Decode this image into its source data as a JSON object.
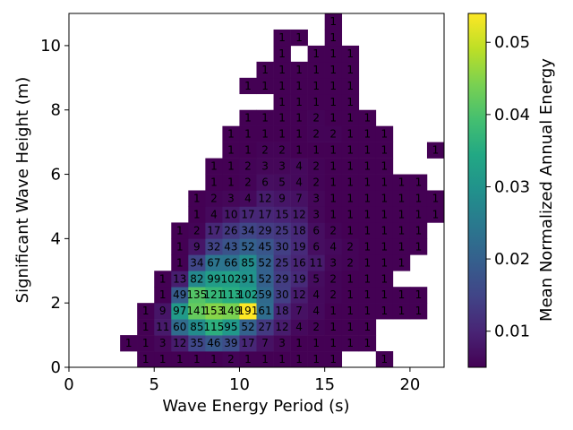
{
  "chart_data": {
    "type": "heatmap",
    "title": "",
    "xlabel": "Wave Energy Period (s)",
    "ylabel": "Significant Wave Height (m)",
    "colorbar_label": "Mean Normalized Annual Energy",
    "colormap": "viridis",
    "xlim": [
      0,
      22
    ],
    "ylim": [
      0,
      11
    ],
    "xticks": [
      0,
      5,
      10,
      15,
      20
    ],
    "yticks": [
      0,
      2,
      4,
      6,
      8,
      10
    ],
    "colorbar_range": [
      0.005,
      0.054
    ],
    "colorbar_ticks": [
      "0.01",
      "0.02",
      "0.03",
      "0.04",
      "0.05"
    ],
    "colorbar_tick_values": [
      0.01,
      0.02,
      0.03,
      0.04,
      0.05
    ],
    "bin_x_edges": [
      3,
      4,
      5,
      6,
      7,
      8,
      9,
      10,
      11,
      12,
      13,
      14,
      15,
      16,
      17,
      18,
      19,
      20,
      21,
      22
    ],
    "bin_y_edges": [
      0,
      0.5,
      1.0,
      1.5,
      2.0,
      2.5,
      3.0,
      3.5,
      4.0,
      4.5,
      5.0,
      5.5,
      6.0,
      6.5,
      7.0,
      7.5,
      8.0,
      8.5,
      9.0,
      9.5,
      10.0,
      10.5,
      11.0
    ],
    "rows": [
      {
        "y": 0.25,
        "cells": [
          [
            4,
            1
          ],
          [
            5,
            1
          ],
          [
            6,
            1
          ],
          [
            7,
            1
          ],
          [
            8,
            1
          ],
          [
            9,
            2
          ],
          [
            10,
            1
          ],
          [
            11,
            1
          ],
          [
            12,
            1
          ],
          [
            13,
            1
          ],
          [
            14,
            1
          ],
          [
            15,
            1
          ],
          [
            18,
            1
          ]
        ]
      },
      {
        "y": 0.75,
        "cells": [
          [
            3,
            1
          ],
          [
            4,
            1
          ],
          [
            5,
            3
          ],
          [
            6,
            12
          ],
          [
            7,
            35
          ],
          [
            8,
            46
          ],
          [
            9,
            39
          ],
          [
            10,
            17
          ],
          [
            11,
            7
          ],
          [
            12,
            3
          ],
          [
            13,
            1
          ],
          [
            14,
            1
          ],
          [
            15,
            1
          ],
          [
            16,
            1
          ],
          [
            17,
            1
          ]
        ]
      },
      {
        "y": 1.25,
        "cells": [
          [
            4,
            1
          ],
          [
            5,
            11
          ],
          [
            6,
            60
          ],
          [
            7,
            85
          ],
          [
            8,
            115
          ],
          [
            9,
            95
          ],
          [
            10,
            52
          ],
          [
            11,
            27
          ],
          [
            12,
            12
          ],
          [
            13,
            4
          ],
          [
            14,
            2
          ],
          [
            15,
            1
          ],
          [
            16,
            1
          ],
          [
            17,
            1
          ]
        ]
      },
      {
        "y": 1.75,
        "cells": [
          [
            4,
            1
          ],
          [
            5,
            9
          ],
          [
            6,
            97
          ],
          [
            7,
            141
          ],
          [
            8,
            153
          ],
          [
            9,
            149
          ],
          [
            10,
            191
          ],
          [
            11,
            61
          ],
          [
            12,
            18
          ],
          [
            13,
            7
          ],
          [
            14,
            4
          ],
          [
            15,
            1
          ],
          [
            16,
            1
          ],
          [
            17,
            1
          ],
          [
            18,
            1
          ],
          [
            19,
            1
          ],
          [
            20,
            1
          ]
        ]
      },
      {
        "y": 2.25,
        "cells": [
          [
            5,
            1
          ],
          [
            6,
            49
          ],
          [
            7,
            135
          ],
          [
            8,
            121
          ],
          [
            9,
            113
          ],
          [
            10,
            102
          ],
          [
            11,
            59
          ],
          [
            12,
            30
          ],
          [
            13,
            12
          ],
          [
            14,
            4
          ],
          [
            15,
            2
          ],
          [
            16,
            1
          ],
          [
            17,
            1
          ],
          [
            18,
            1
          ],
          [
            19,
            1
          ],
          [
            20,
            1
          ]
        ]
      },
      {
        "y": 2.75,
        "cells": [
          [
            5,
            1
          ],
          [
            6,
            13
          ],
          [
            7,
            82
          ],
          [
            8,
            99
          ],
          [
            9,
            102
          ],
          [
            10,
            91
          ],
          [
            11,
            52
          ],
          [
            12,
            29
          ],
          [
            13,
            19
          ],
          [
            14,
            5
          ],
          [
            15,
            2
          ],
          [
            16,
            1
          ],
          [
            17,
            1
          ],
          [
            18,
            1
          ]
        ]
      },
      {
        "y": 3.25,
        "cells": [
          [
            6,
            1
          ],
          [
            7,
            34
          ],
          [
            8,
            67
          ],
          [
            9,
            66
          ],
          [
            10,
            85
          ],
          [
            11,
            52
          ],
          [
            12,
            25
          ],
          [
            13,
            16
          ],
          [
            14,
            11
          ],
          [
            15,
            3
          ],
          [
            16,
            2
          ],
          [
            17,
            1
          ],
          [
            18,
            1
          ],
          [
            19,
            1
          ]
        ]
      },
      {
        "y": 3.75,
        "cells": [
          [
            6,
            1
          ],
          [
            7,
            9
          ],
          [
            8,
            32
          ],
          [
            9,
            43
          ],
          [
            10,
            52
          ],
          [
            11,
            45
          ],
          [
            12,
            30
          ],
          [
            13,
            19
          ],
          [
            14,
            6
          ],
          [
            15,
            4
          ],
          [
            16,
            2
          ],
          [
            17,
            1
          ],
          [
            18,
            1
          ],
          [
            19,
            1
          ],
          [
            20,
            1
          ]
        ]
      },
      {
        "y": 4.25,
        "cells": [
          [
            6,
            1
          ],
          [
            7,
            2
          ],
          [
            8,
            17
          ],
          [
            9,
            26
          ],
          [
            10,
            34
          ],
          [
            11,
            29
          ],
          [
            12,
            25
          ],
          [
            13,
            18
          ],
          [
            14,
            6
          ],
          [
            15,
            2
          ],
          [
            16,
            1
          ],
          [
            17,
            1
          ],
          [
            18,
            1
          ],
          [
            19,
            1
          ],
          [
            20,
            1
          ]
        ]
      },
      {
        "y": 4.75,
        "cells": [
          [
            7,
            1
          ],
          [
            8,
            4
          ],
          [
            9,
            10
          ],
          [
            10,
            17
          ],
          [
            11,
            17
          ],
          [
            12,
            15
          ],
          [
            13,
            12
          ],
          [
            14,
            3
          ],
          [
            15,
            1
          ],
          [
            16,
            1
          ],
          [
            17,
            1
          ],
          [
            18,
            1
          ],
          [
            19,
            1
          ],
          [
            20,
            1
          ],
          [
            21,
            1
          ]
        ]
      },
      {
        "y": 5.25,
        "cells": [
          [
            7,
            1
          ],
          [
            8,
            2
          ],
          [
            9,
            3
          ],
          [
            10,
            4
          ],
          [
            11,
            12
          ],
          [
            12,
            9
          ],
          [
            13,
            7
          ],
          [
            14,
            3
          ],
          [
            15,
            1
          ],
          [
            16,
            1
          ],
          [
            17,
            1
          ],
          [
            18,
            1
          ],
          [
            19,
            1
          ],
          [
            20,
            1
          ],
          [
            21,
            1
          ]
        ]
      },
      {
        "y": 5.75,
        "cells": [
          [
            8,
            1
          ],
          [
            9,
            1
          ],
          [
            10,
            2
          ],
          [
            11,
            6
          ],
          [
            12,
            5
          ],
          [
            13,
            4
          ],
          [
            14,
            2
          ],
          [
            15,
            1
          ],
          [
            16,
            1
          ],
          [
            17,
            1
          ],
          [
            18,
            1
          ],
          [
            19,
            1
          ],
          [
            20,
            1
          ]
        ]
      },
      {
        "y": 6.25,
        "cells": [
          [
            8,
            1
          ],
          [
            9,
            1
          ],
          [
            10,
            2
          ],
          [
            11,
            3
          ],
          [
            12,
            3
          ],
          [
            13,
            4
          ],
          [
            14,
            2
          ],
          [
            15,
            1
          ],
          [
            16,
            1
          ],
          [
            17,
            1
          ],
          [
            18,
            1
          ]
        ]
      },
      {
        "y": 6.75,
        "cells": [
          [
            9,
            1
          ],
          [
            10,
            1
          ],
          [
            11,
            2
          ],
          [
            12,
            2
          ],
          [
            13,
            1
          ],
          [
            14,
            1
          ],
          [
            15,
            1
          ],
          [
            16,
            1
          ],
          [
            17,
            1
          ],
          [
            18,
            1
          ],
          [
            21,
            1
          ]
        ]
      },
      {
        "y": 7.25,
        "cells": [
          [
            9,
            1
          ],
          [
            10,
            1
          ],
          [
            11,
            1
          ],
          [
            12,
            1
          ],
          [
            13,
            1
          ],
          [
            14,
            2
          ],
          [
            15,
            2
          ],
          [
            16,
            1
          ],
          [
            17,
            1
          ],
          [
            18,
            1
          ]
        ]
      },
      {
        "y": 7.75,
        "cells": [
          [
            10,
            1
          ],
          [
            11,
            1
          ],
          [
            12,
            1
          ],
          [
            13,
            1
          ],
          [
            14,
            2
          ],
          [
            15,
            1
          ],
          [
            16,
            1
          ],
          [
            17,
            1
          ]
        ]
      },
      {
        "y": 8.25,
        "cells": [
          [
            12,
            1
          ],
          [
            13,
            1
          ],
          [
            14,
            1
          ],
          [
            15,
            1
          ],
          [
            16,
            1
          ]
        ]
      },
      {
        "y": 8.75,
        "cells": [
          [
            10,
            1
          ],
          [
            11,
            1
          ],
          [
            12,
            1
          ],
          [
            13,
            1
          ],
          [
            14,
            1
          ],
          [
            15,
            1
          ],
          [
            16,
            1
          ]
        ]
      },
      {
        "y": 9.25,
        "cells": [
          [
            11,
            1
          ],
          [
            12,
            1
          ],
          [
            13,
            1
          ],
          [
            14,
            1
          ],
          [
            15,
            1
          ],
          [
            16,
            1
          ]
        ]
      },
      {
        "y": 9.75,
        "cells": [
          [
            12,
            1
          ],
          [
            14,
            1
          ],
          [
            15,
            1
          ],
          [
            16,
            1
          ]
        ]
      },
      {
        "y": 10.25,
        "cells": [
          [
            12,
            1
          ],
          [
            13,
            1
          ],
          [
            15,
            1
          ]
        ]
      },
      {
        "y": 10.75,
        "cells": [
          [
            15,
            1
          ]
        ]
      }
    ],
    "peak_value": 191,
    "grid": false,
    "legend": "none"
  }
}
